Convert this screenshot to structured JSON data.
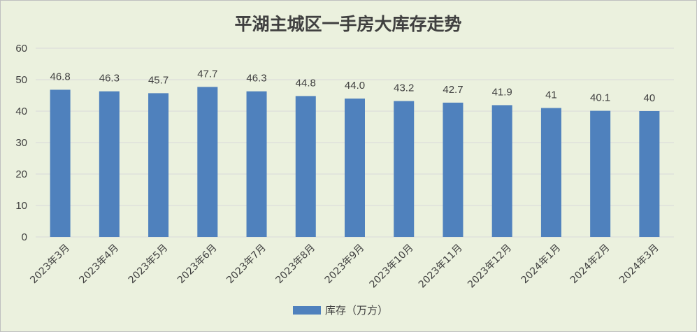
{
  "chart_data": {
    "type": "bar",
    "title": "平湖主城区一手房大库存走势",
    "categories": [
      "2023年3月",
      "2023年4月",
      "2023年5月",
      "2023年6月",
      "2023年7月",
      "2023年8月",
      "2023年9月",
      "2023年10月",
      "2023年11月",
      "2023年12月",
      "2024年1月",
      "2024年2月",
      "2024年3月"
    ],
    "series": [
      {
        "name": "库存（万方）",
        "color": "#4f81bd",
        "values": [
          46.8,
          46.3,
          45.7,
          47.7,
          46.3,
          44.8,
          44.0,
          43.2,
          42.7,
          41.9,
          41,
          40.1,
          40
        ],
        "labels": [
          "46.8",
          "46.3",
          "45.7",
          "47.7",
          "46.3",
          "44.8",
          "44.0",
          "43.2",
          "42.7",
          "41.9",
          "41",
          "40.1",
          "40"
        ]
      }
    ],
    "ylim": [
      0,
      60
    ],
    "yticks": [
      0,
      10,
      20,
      30,
      40,
      50,
      60
    ],
    "grid": true,
    "legend_position": "bottom",
    "background": "#ebf1de",
    "gridline_color": "#d9d9d9"
  }
}
